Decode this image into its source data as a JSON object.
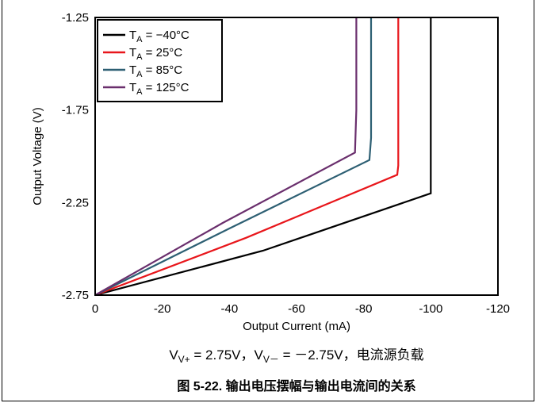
{
  "chart_data": {
    "type": "line",
    "xlabel": "Output Current (mA)",
    "ylabel": "Output Voltage (V)",
    "xlim": [
      0,
      -120
    ],
    "ylim": [
      -2.75,
      -1.25
    ],
    "x_ticks": [
      "0",
      "-20",
      "-40",
      "-60",
      "-80",
      "-100",
      "-120"
    ],
    "y_ticks": [
      "-1.25",
      "-1.75",
      "-2.25",
      "-2.75"
    ],
    "grid": false,
    "legend_position": "top-left",
    "series": [
      {
        "name_main": "T",
        "name_sub": "A",
        "name_rest": " = −40°C",
        "color": "#000000",
        "x": [
          0,
          -50,
          -100,
          -100,
          -100
        ],
        "y": [
          -2.75,
          -2.51,
          -2.2,
          -2.1,
          -1.25
        ]
      },
      {
        "name_main": "T",
        "name_sub": "A",
        "name_rest": " = 25°C",
        "color": "#e8161b",
        "x": [
          0,
          -45,
          -90,
          -90.3,
          -90.3
        ],
        "y": [
          -2.75,
          -2.44,
          -2.1,
          -2.05,
          -1.25
        ]
      },
      {
        "name_main": "T",
        "name_sub": "A",
        "name_rest": " = 85°C",
        "color": "#2d5f73",
        "x": [
          0,
          -40,
          -81.7,
          -82.2,
          -82.2
        ],
        "y": [
          -2.75,
          -2.39,
          -2.02,
          -1.9,
          -1.25
        ]
      },
      {
        "name_main": "T",
        "name_sub": "A",
        "name_rest": " = 125°C",
        "color": "#6a2f6d",
        "x": [
          0,
          -38,
          -77.4,
          -77.8,
          -77.8
        ],
        "y": [
          -2.75,
          -2.36,
          -1.98,
          -1.75,
          -1.25
        ]
      }
    ]
  },
  "condition": {
    "part1": "V",
    "part1_sub": "V+",
    "part2": " = 2.75V，V",
    "part2_sub": "V－",
    "part3": " = －2.75V，电流源负载"
  },
  "caption": "图 5-22. 输出电压摆幅与输出电流间的关系"
}
